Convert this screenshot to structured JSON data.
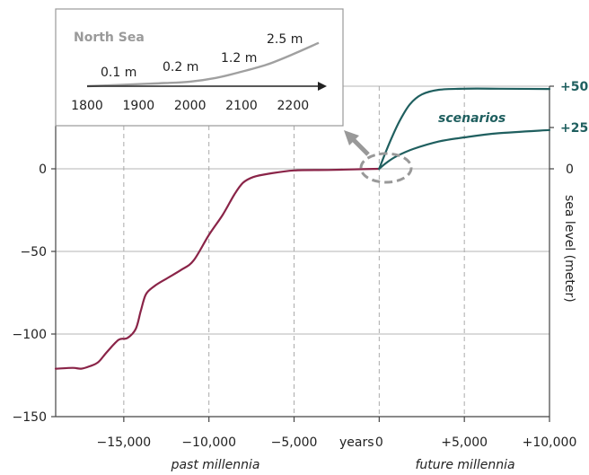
{
  "chart_data": {
    "type": "line",
    "xlabel": "years",
    "ylabel": "sea level (meter)",
    "xlim": [
      -19000,
      10000
    ],
    "ylim": [
      -150,
      50
    ],
    "x_ticks": [
      {
        "value": -15000,
        "label": "−15,000"
      },
      {
        "value": -10000,
        "label": "−10,000"
      },
      {
        "value": -5000,
        "label": "−5,000"
      },
      {
        "value": 0,
        "label": "0"
      },
      {
        "value": 5000,
        "label": "+5,000"
      },
      {
        "value": 10000,
        "label": "+10,000"
      }
    ],
    "y_ticks_left": [
      {
        "value": 0,
        "label": "0"
      },
      {
        "value": -50,
        "label": "−50"
      },
      {
        "value": -100,
        "label": "−100"
      },
      {
        "value": -150,
        "label": "−150"
      }
    ],
    "y_ticks_right": [
      {
        "value": 50,
        "label": "+50"
      },
      {
        "value": 25,
        "label": "+25"
      },
      {
        "value": 0,
        "label": "0"
      }
    ],
    "past_label": "past millennia",
    "future_label": "future millennia",
    "scenarios_label": "scenarios",
    "series": [
      {
        "color": "#8a2448",
        "points": [
          [
            -19000,
            -121
          ],
          [
            -18000,
            -120.5
          ],
          [
            -17500,
            -121
          ],
          [
            -17000,
            -119.5
          ],
          [
            -16500,
            -117
          ],
          [
            -16000,
            -111
          ],
          [
            -15300,
            -103.5
          ],
          [
            -14800,
            -102.5
          ],
          [
            -14300,
            -97
          ],
          [
            -14000,
            -86
          ],
          [
            -13700,
            -76
          ],
          [
            -13200,
            -71
          ],
          [
            -12500,
            -66.5
          ],
          [
            -11600,
            -61
          ],
          [
            -10900,
            -55.5
          ],
          [
            -10000,
            -40
          ],
          [
            -9200,
            -28
          ],
          [
            -8500,
            -15.5
          ],
          [
            -8000,
            -8.5
          ],
          [
            -7400,
            -5
          ],
          [
            -6500,
            -3
          ],
          [
            -5000,
            -1
          ],
          [
            -3000,
            -0.7
          ],
          [
            -1000,
            -0.2
          ],
          [
            0,
            0
          ]
        ]
      },
      {
        "color": "#1f5f5f",
        "points": [
          [
            0,
            0
          ],
          [
            300,
            8
          ],
          [
            700,
            18
          ],
          [
            1200,
            29
          ],
          [
            1800,
            39
          ],
          [
            2500,
            45
          ],
          [
            3500,
            47.8
          ],
          [
            5000,
            48.5
          ],
          [
            7000,
            48.5
          ],
          [
            10000,
            48.3
          ]
        ]
      },
      {
        "color": "#1f5f5f",
        "points": [
          [
            0,
            0
          ],
          [
            400,
            3.5
          ],
          [
            1000,
            7.5
          ],
          [
            2000,
            12
          ],
          [
            3500,
            16.5
          ],
          [
            5000,
            19
          ],
          [
            7000,
            21.5
          ],
          [
            10000,
            23.5
          ]
        ]
      }
    ],
    "inset": {
      "title": "North Sea",
      "x_ticks": [
        {
          "value": 1800,
          "label": "1800"
        },
        {
          "value": 1900,
          "label": "1900"
        },
        {
          "value": 2000,
          "label": "2000"
        },
        {
          "value": 2100,
          "label": "2100"
        },
        {
          "value": 2200,
          "label": "2200"
        }
      ],
      "annotations": [
        {
          "year": 1880,
          "value": 0.1,
          "label": "0.1 m"
        },
        {
          "year": 2010,
          "value": 0.2,
          "label": "0.2 m"
        },
        {
          "year": 2110,
          "value": 1.2,
          "label": "1.2 m"
        },
        {
          "year": 2210,
          "value": 2.5,
          "label": "2.5 m"
        }
      ],
      "curve": [
        [
          1800,
          0
        ],
        [
          1900,
          0.1
        ],
        [
          1950,
          0.15
        ],
        [
          2000,
          0.22
        ],
        [
          2050,
          0.4
        ],
        [
          2100,
          0.7
        ],
        [
          2150,
          1.05
        ],
        [
          2200,
          1.55
        ],
        [
          2250,
          2.1
        ]
      ]
    }
  }
}
